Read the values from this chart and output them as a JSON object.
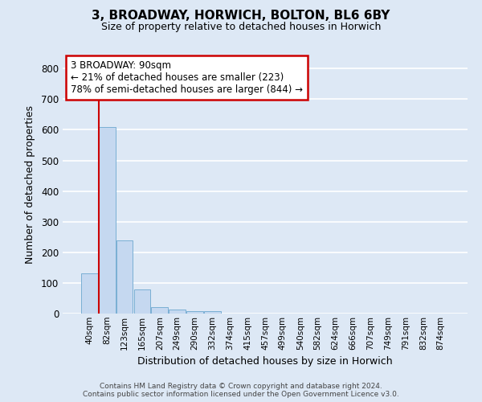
{
  "title_line1": "3, BROADWAY, HORWICH, BOLTON, BL6 6BY",
  "title_line2": "Size of property relative to detached houses in Horwich",
  "xlabel": "Distribution of detached houses by size in Horwich",
  "ylabel": "Number of detached properties",
  "bar_labels": [
    "40sqm",
    "82sqm",
    "123sqm",
    "165sqm",
    "207sqm",
    "249sqm",
    "290sqm",
    "332sqm",
    "374sqm",
    "415sqm",
    "457sqm",
    "499sqm",
    "540sqm",
    "582sqm",
    "624sqm",
    "666sqm",
    "707sqm",
    "749sqm",
    "791sqm",
    "832sqm",
    "874sqm"
  ],
  "bar_values": [
    130,
    610,
    238,
    80,
    22,
    12,
    9,
    9,
    0,
    0,
    0,
    0,
    0,
    0,
    0,
    0,
    0,
    0,
    0,
    0,
    0
  ],
  "bar_color": "#c5d8f0",
  "bar_edge_color": "#7aafd4",
  "background_color": "#dde8f5",
  "grid_color": "#ffffff",
  "annotation_text": "3 BROADWAY: 90sqm\n← 21% of detached houses are smaller (223)\n78% of semi-detached houses are larger (844) →",
  "annotation_box_color": "#ffffff",
  "annotation_box_edge_color": "#cc0000",
  "vline_x": 0.55,
  "vline_color": "#cc0000",
  "ylim": [
    0,
    840
  ],
  "yticks": [
    0,
    100,
    200,
    300,
    400,
    500,
    600,
    700,
    800
  ],
  "footer_line1": "Contains HM Land Registry data © Crown copyright and database right 2024.",
  "footer_line2": "Contains public sector information licensed under the Open Government Licence v3.0."
}
